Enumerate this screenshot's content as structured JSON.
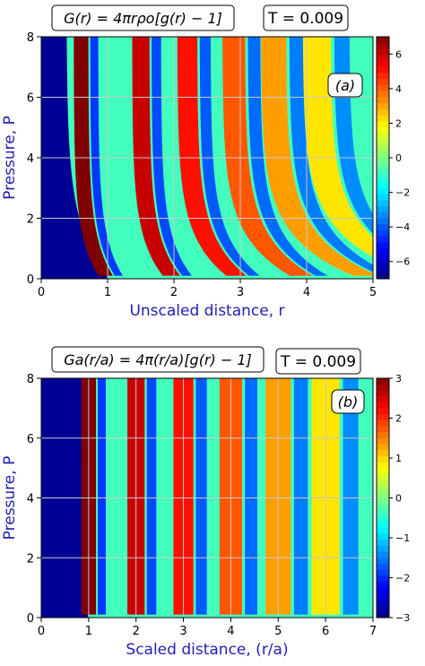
{
  "chart_data": [
    {
      "type": "heatmap",
      "formula_box": "G(r) = 4πrρo[g(r) − 1]",
      "temperature_box": "T = 0.009",
      "panel_label": "(a)",
      "xlabel": "Unscaled distance,  r",
      "ylabel": "Pressure, P",
      "xlim": [
        0,
        5
      ],
      "ylim": [
        0,
        8
      ],
      "x_ticks": [
        "0",
        "1",
        "2",
        "3",
        "4",
        "5"
      ],
      "y_ticks": [
        "0",
        "2",
        "4",
        "6",
        "8"
      ],
      "colorbar_ticks": [
        "6",
        "4",
        "2",
        "0",
        "−2",
        "−4",
        "−6"
      ],
      "colorbar_range": [
        -7,
        7
      ],
      "grid": true,
      "colormap": "jet",
      "peaks_at_high_pressure": [
        0.6,
        1.5,
        2.2,
        2.9,
        3.5,
        4.15
      ],
      "first_peak_low_pressure": 1.0
    },
    {
      "type": "heatmap",
      "formula_box": "Ga(r/a) = 4π(r/a)[g(r) − 1]",
      "temperature_box": "T = 0.009",
      "panel_label": "(b)",
      "xlabel": "Scaled distance,  (r/a)",
      "ylabel": "Pressure, P",
      "xlim": [
        0,
        7
      ],
      "ylim": [
        0,
        8
      ],
      "x_ticks": [
        "0",
        "1",
        "2",
        "3",
        "4",
        "5",
        "6",
        "7"
      ],
      "y_ticks": [
        "0",
        "2",
        "4",
        "6",
        "8"
      ],
      "colorbar_ticks": [
        "3",
        "2",
        "1",
        "0",
        "−1",
        "−2",
        "−3"
      ],
      "colorbar_range": [
        -3,
        3
      ],
      "grid": true,
      "colormap": "jet",
      "peaks_at_high_pressure": [
        1.0,
        2.0,
        3.0,
        4.0,
        5.0,
        6.0
      ],
      "first_peak_low_pressure": 1.0
    }
  ],
  "colors": {
    "axis_label": "#1f1fb4",
    "grid": "#c8c8c8"
  }
}
